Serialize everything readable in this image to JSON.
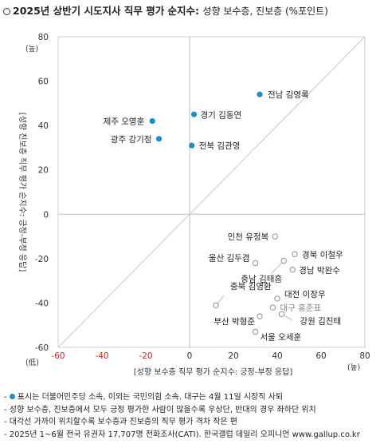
{
  "header": {
    "title": "2025년 상반기 시도지사 직무 평가 순지수:",
    "subtitle": "성향 보수층, 진보층 (%포인트)"
  },
  "chart_data": {
    "type": "scatter",
    "xlabel": "[성향 보수층 직무 평가 순지수: 긍정-부정 응답]",
    "ylabel": "[성향 진보층 직무 평가 순지수: 긍정-부정 응답]",
    "xlim": [
      -60,
      80
    ],
    "ylim": [
      -60,
      80
    ],
    "x_ticks": [
      "-60",
      "-40",
      "-20",
      "0",
      "20",
      "40",
      "60",
      "80"
    ],
    "y_ticks": [
      "80",
      "60",
      "40",
      "20",
      "0",
      "-20",
      "-40",
      "-60"
    ],
    "corner_labels": {
      "top": "(높)",
      "bottom_left": "(低)",
      "bottom_right": "(높)"
    },
    "grid": false,
    "reference_line": "diagonal y = x",
    "colors": {
      "blue": "#1f8dc6",
      "hollow": "#999999",
      "negative_tick": "#cc2222"
    },
    "points": [
      {
        "label": "전남 김영록",
        "x": 32,
        "y": 54,
        "type": "blue"
      },
      {
        "label": "경기 김동연",
        "x": 2,
        "y": 45,
        "type": "blue"
      },
      {
        "label": "제주 오영훈",
        "x": -17,
        "y": 42,
        "type": "blue"
      },
      {
        "label": "광주 강기정",
        "x": -14,
        "y": 34,
        "type": "blue"
      },
      {
        "label": "전북 김관영",
        "x": 1,
        "y": 31,
        "type": "blue"
      },
      {
        "label": "인천 유정복",
        "x": 39,
        "y": -10,
        "type": "hollow"
      },
      {
        "label": "경북 이철우",
        "x": 48,
        "y": -18,
        "type": "hollow"
      },
      {
        "label": "울산 김두겸",
        "x": 30,
        "y": -22,
        "type": "hollow"
      },
      {
        "label": "충남 김태흠",
        "x": 43,
        "y": -21,
        "type": "hollow"
      },
      {
        "label": "경남 박완수",
        "x": 47,
        "y": -25,
        "type": "hollow"
      },
      {
        "label": "충북 김영환",
        "x": 12,
        "y": -41,
        "type": "hollow"
      },
      {
        "label": "대전 이장우",
        "x": 40,
        "y": -38,
        "type": "hollow"
      },
      {
        "label": "대구 홍준표",
        "x": 38,
        "y": -42,
        "type": "hollow"
      },
      {
        "label": "부산 박형준",
        "x": 32,
        "y": -46,
        "type": "hollow"
      },
      {
        "label": "강원 김진태",
        "x": 42,
        "y": -45,
        "type": "hollow"
      },
      {
        "label": "서울 오세훈",
        "x": 30,
        "y": -53,
        "type": "hollow"
      }
    ]
  },
  "notes": {
    "line1": "표시는 더불어민주당 소속, 이외는 국민의힘 소속. 대구는 4월 11일 시장직 사퇴",
    "line2": "- 성향 보수층, 진보층에서 모두 긍정 평가한 사람이 많을수록 우상단, 반대의 경우 좌하단 위치",
    "line3": "- 대각선 가까이 위치할수록 보수층과 진보층의 직무 평가 격차 작은 편",
    "line4": "- 2025년 1~6월 전국 유권자 17,707명 전화조사(CATI). 한국갤럽 데일리 오피니언 www.gallup.co.kr"
  }
}
